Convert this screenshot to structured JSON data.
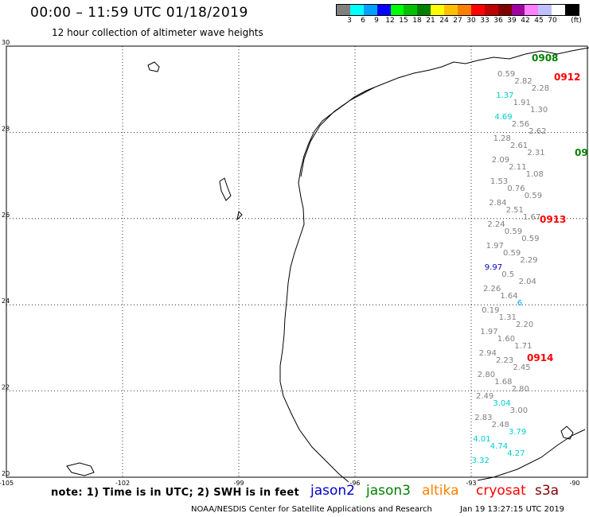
{
  "header": {
    "title": "00:00 – 11:59 UTC 01/18/2019",
    "subtitle": "12 hour collection of altimeter wave heights"
  },
  "scale": {
    "unit": "(ft)",
    "colors": [
      "#808080",
      "#00ffff",
      "#00a0ff",
      "#0000ff",
      "#00ff00",
      "#00c000",
      "#008000",
      "#ffff00",
      "#ffc000",
      "#ff8000",
      "#ff0000",
      "#c00000",
      "#800000",
      "#a000a0",
      "#ff80ff",
      "#c0c0ff",
      "#ffffff",
      "#000000"
    ],
    "labels": [
      "3",
      "6",
      "9",
      "12",
      "15",
      "18",
      "21",
      "24",
      "27",
      "30",
      "33",
      "36",
      "39",
      "42",
      "45",
      "70"
    ]
  },
  "axes": {
    "lat_labels": [
      "30",
      "28",
      "26",
      "24",
      "22",
      "20"
    ],
    "lon_labels": [
      "-105",
      "-102",
      "-99",
      "-96",
      "-93",
      "-90"
    ]
  },
  "pass_labels": [
    {
      "text": "0908",
      "color": "#008000"
    },
    {
      "text": "0912",
      "color": "#ff0000"
    },
    {
      "text": "09",
      "color": "#008000"
    },
    {
      "text": "0913",
      "color": "#ff0000"
    },
    {
      "text": "0914",
      "color": "#ff0000"
    }
  ],
  "wave_values": [
    {
      "v": "0.59",
      "c": "#808080"
    },
    {
      "v": "2.82",
      "c": "#808080"
    },
    {
      "v": "2.28",
      "c": "#808080"
    },
    {
      "v": "1.37",
      "c": "#00cccc"
    },
    {
      "v": "1.91",
      "c": "#808080"
    },
    {
      "v": "1.30",
      "c": "#808080"
    },
    {
      "v": "4.69",
      "c": "#00cccc"
    },
    {
      "v": "2.56",
      "c": "#808080"
    },
    {
      "v": "2.62",
      "c": "#808080"
    },
    {
      "v": "1.28",
      "c": "#808080"
    },
    {
      "v": "2.61",
      "c": "#808080"
    },
    {
      "v": "2.31",
      "c": "#808080"
    },
    {
      "v": "2.09",
      "c": "#808080"
    },
    {
      "v": "2.11",
      "c": "#808080"
    },
    {
      "v": "1.08",
      "c": "#808080"
    },
    {
      "v": "1.53",
      "c": "#808080"
    },
    {
      "v": "0.76",
      "c": "#808080"
    },
    {
      "v": "0.59",
      "c": "#808080"
    },
    {
      "v": "2.84",
      "c": "#808080"
    },
    {
      "v": "2.51",
      "c": "#808080"
    },
    {
      "v": "1.67",
      "c": "#808080"
    },
    {
      "v": "2.24",
      "c": "#808080"
    },
    {
      "v": "0.59",
      "c": "#808080"
    },
    {
      "v": "0.59",
      "c": "#808080"
    },
    {
      "v": "1.97",
      "c": "#808080"
    },
    {
      "v": "0.59",
      "c": "#808080"
    },
    {
      "v": "2.29",
      "c": "#808080"
    },
    {
      "v": "9.97",
      "c": "#0000cc"
    },
    {
      "v": "0.5",
      "c": "#808080"
    },
    {
      "v": "2.04",
      "c": "#808080"
    },
    {
      "v": "2.26",
      "c": "#808080"
    },
    {
      "v": "1.64",
      "c": "#808080"
    },
    {
      "v": "6",
      "c": "#00a0ff"
    },
    {
      "v": "0.19",
      "c": "#808080"
    },
    {
      "v": "1.31",
      "c": "#808080"
    },
    {
      "v": "2.20",
      "c": "#808080"
    },
    {
      "v": "1.97",
      "c": "#808080"
    },
    {
      "v": "1.60",
      "c": "#808080"
    },
    {
      "v": "1.71",
      "c": "#808080"
    },
    {
      "v": "2.94",
      "c": "#808080"
    },
    {
      "v": "2.23",
      "c": "#808080"
    },
    {
      "v": "2.45",
      "c": "#808080"
    },
    {
      "v": "2.80",
      "c": "#808080"
    },
    {
      "v": "1.68",
      "c": "#808080"
    },
    {
      "v": "2.80",
      "c": "#808080"
    },
    {
      "v": "2.49",
      "c": "#808080"
    },
    {
      "v": "3.04",
      "c": "#00cccc"
    },
    {
      "v": "3.00",
      "c": "#808080"
    },
    {
      "v": "2.83",
      "c": "#808080"
    },
    {
      "v": "2.48",
      "c": "#808080"
    },
    {
      "v": "3.79",
      "c": "#00cccc"
    },
    {
      "v": "4.01",
      "c": "#00cccc"
    },
    {
      "v": "4.74",
      "c": "#00cccc"
    },
    {
      "v": "4.27",
      "c": "#00cccc"
    },
    {
      "v": "3.32",
      "c": "#00cccc"
    }
  ],
  "footer": {
    "note": "note:  1) Time is in UTC;  2) SWH is in feet",
    "legend": [
      {
        "name": "jason2",
        "color": "#0000cc"
      },
      {
        "name": "jason3",
        "color": "#008000"
      },
      {
        "name": "altika",
        "color": "#ff8000"
      },
      {
        "name": "cryosat",
        "color": "#ff0000"
      },
      {
        "name": "s3a",
        "color": "#800000"
      }
    ],
    "credit": "NOAA/NESDIS Center for Satellite Applications and Research",
    "timestamp": "Jan 19 13:27:15 UTC 2019"
  }
}
